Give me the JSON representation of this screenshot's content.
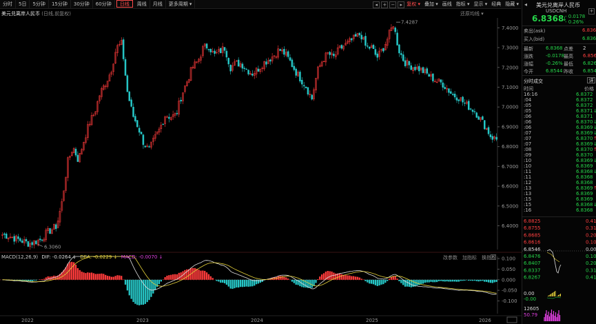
{
  "toolbar": {
    "periods": [
      "分时",
      "5日",
      "5分钟",
      "15分钟",
      "30分钟",
      "60分钟",
      "日线",
      "周线",
      "月线",
      "更多周期 ▾"
    ],
    "active_period": "日线",
    "buttons": [
      "复权 ▾",
      "叠加 ▾",
      "画线",
      "指标 ▾",
      "显示 ▾",
      "经典",
      "隐藏 ▾"
    ],
    "active_button": "复权 ▾"
  },
  "chart_title": {
    "name": "美元兑离岸人民币",
    "sub": "(日线,前复权)"
  },
  "restore_label": "还原均线 ▾",
  "macd_label": {
    "name": "MACD(12,26,9)",
    "dif": "DIF: -0.0264 ↓",
    "dea": "DEA: -0.0229 ↓",
    "macd": "MACD: -0.0070 ↓"
  },
  "macd_buttons": [
    "改参数",
    "加指标",
    "换指标"
  ],
  "chart_data": {
    "type": "line",
    "title": "美元兑离岸人民币",
    "ylim": [
      6.28,
      7.45
    ],
    "yticks": [
      "7.4000",
      "7.3000",
      "7.2000",
      "7.1000",
      "7.0000",
      "6.9000",
      "6.8000",
      "6.7000",
      "6.6000",
      "6.5000",
      "6.4000"
    ],
    "xticks": [
      "2022",
      "2023",
      "2024",
      "2025",
      "2026"
    ],
    "annotations": [
      {
        "label": "7.4287",
        "value": 7.4287
      },
      {
        "label": "6.3060",
        "value": 6.306
      }
    ],
    "close_series": [
      6.355,
      6.35,
      6.34,
      6.33,
      6.32,
      6.31,
      6.32,
      6.33,
      6.36,
      6.38,
      6.4,
      6.52,
      6.72,
      6.8,
      6.73,
      6.83,
      6.92,
      6.97,
      7.07,
      7.12,
      7.18,
      7.3,
      7.32,
      7.08,
      6.96,
      6.9,
      6.82,
      6.78,
      6.84,
      6.89,
      6.96,
      6.95,
      6.96,
      7.06,
      7.13,
      7.2,
      7.23,
      7.3,
      7.31,
      7.26,
      7.28,
      7.3,
      7.2,
      7.22,
      7.22,
      7.19,
      7.17,
      7.19,
      7.22,
      7.24,
      7.26,
      7.29,
      7.27,
      7.23,
      7.18,
      7.14,
      7.1,
      7.04,
      7.18,
      7.24,
      7.27,
      7.25,
      7.29,
      7.31,
      7.33,
      7.35,
      7.37,
      7.3,
      7.3,
      7.25,
      7.29,
      7.35,
      7.42,
      7.29,
      7.23,
      7.21,
      7.2,
      7.19,
      7.17,
      7.15,
      7.13,
      7.12,
      7.09,
      7.06,
      7.05,
      7.02,
      7.0,
      6.98,
      6.94,
      6.9,
      6.85,
      6.8368
    ],
    "macd_ylim": [
      -0.16,
      0.11
    ],
    "macd_yticks": [
      "0.100",
      "0.050",
      "0.000",
      "-0.050",
      "-0.100"
    ]
  },
  "quote": {
    "name": "美元兑离岸人民币",
    "code": "USDCNH",
    "price": "6.8368",
    "change": "- 0.0178",
    "change_pct": "- 0.26%",
    "ask_label": "卖出(ask)",
    "ask_value": "6.8369",
    "bid_label": "买入(bid)",
    "bid_value": "6.8367",
    "stats": [
      {
        "l1": "最新",
        "v1": "6.8368",
        "l2": "点差",
        "v2": "2"
      },
      {
        "l1": "涨跌",
        "v1": "-0.0178",
        "l2": "最高",
        "v2": "6.8560"
      },
      {
        "l1": "涨幅",
        "v1": "-0.26%",
        "l2": "最低",
        "v2": "6.8267"
      },
      {
        "l1": "今开",
        "v1": "6.8544",
        "l2": "昨收",
        "v2": "6.8546"
      }
    ],
    "trades_title": "分时成交",
    "trades_btn": "详",
    "trades_col_time": "时间",
    "trades_col_price": "价格",
    "trades": [
      {
        "t": "16:16",
        "p": "6.8372",
        "a": ""
      },
      {
        "t": ":04",
        "p": "6.8372",
        "a": ""
      },
      {
        "t": ":05",
        "p": "6.8372",
        "a": ""
      },
      {
        "t": ":05",
        "p": "6.8371",
        "a": "↓"
      },
      {
        "t": ":06",
        "p": "6.8371",
        "a": ""
      },
      {
        "t": ":06",
        "p": "6.8370",
        "a": "↓"
      },
      {
        "t": ":06",
        "p": "6.8369",
        "a": "↓"
      },
      {
        "t": ":07",
        "p": "6.8369",
        "a": "↓"
      },
      {
        "t": ":07",
        "p": "6.8370",
        "a": "↑"
      },
      {
        "t": ":07",
        "p": "6.8369",
        "a": "↓"
      },
      {
        "t": ":08",
        "p": "6.8370",
        "a": "↑"
      },
      {
        "t": ":09",
        "p": "6.8370",
        "a": ""
      },
      {
        "t": ":10",
        "p": "6.8369",
        "a": "↓"
      },
      {
        "t": ":10",
        "p": "6.8369",
        "a": ""
      },
      {
        "t": ":11",
        "p": "6.8368",
        "a": "↓"
      },
      {
        "t": ":11",
        "p": "6.8368",
        "a": ""
      },
      {
        "t": ":12",
        "p": "6.8368",
        "a": ""
      },
      {
        "t": ":13",
        "p": "6.8369",
        "a": "↑"
      },
      {
        "t": ":13",
        "p": "6.8369",
        "a": ""
      },
      {
        "t": ":15",
        "p": "6.8369",
        "a": ""
      },
      {
        "t": ":15",
        "p": "6.8368",
        "a": "↓"
      },
      {
        "t": ":16",
        "p": "6.8368",
        "a": ""
      }
    ],
    "mini_left": [
      "6.8825",
      "6.8755",
      "6.8685",
      "6.8616",
      "6.8546",
      "6.8476",
      "6.8407",
      "6.8337",
      "6.8267"
    ],
    "mini_right": [
      "0.41%",
      "0.31%",
      "0.20%",
      "0.10%",
      "0.00%",
      "0.10%",
      "0.20%",
      "0.31%",
      "0.41%"
    ],
    "mini_macd": [
      "0.00",
      "-0.00"
    ],
    "mini_vol": [
      "12605",
      "50.79"
    ]
  },
  "colors": {
    "up": "#ff3b3b",
    "down": "#26c6c6",
    "accent": "#ff4a4a",
    "price_green": "#26d64a",
    "dif": "#e0e0e0",
    "dea": "#e6d23a",
    "macd": "#e040e0"
  }
}
